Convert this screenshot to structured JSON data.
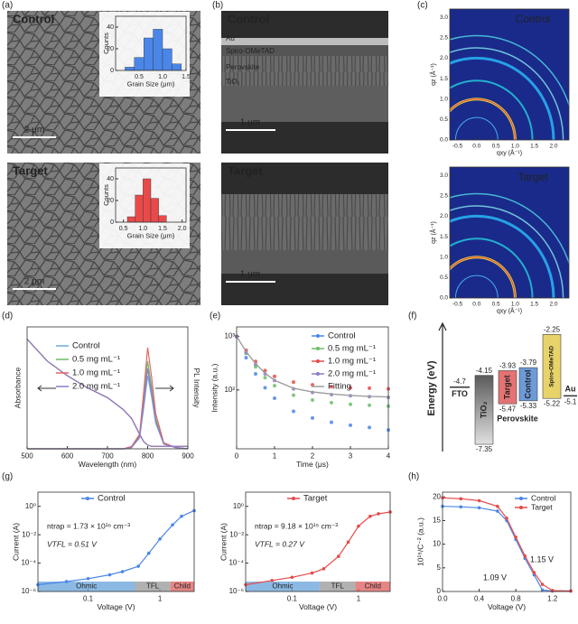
{
  "panel_labels": [
    "(a)",
    "(b)",
    "(c)",
    "(d)",
    "(e)",
    "(f)",
    "(g)",
    "(h)"
  ],
  "sem_images": [
    {
      "label": "Control",
      "scale_bar": "2 μm"
    },
    {
      "label": "Target",
      "scale_bar": "2 μm"
    }
  ],
  "cross_sections": [
    {
      "label": "Control",
      "layers": [
        "Au",
        "Spiro-OMeTAD",
        "Perovskite",
        "TiO₂"
      ],
      "scale_bar": "1 μm"
    },
    {
      "label": "Target",
      "scale_bar": "1 μm"
    }
  ],
  "giwaxs": [
    {
      "label": "Control",
      "xlabel": "qxy (Å⁻¹)",
      "ylabel": "qz (Å⁻¹)",
      "xlim": [
        -0.7,
        2.4
      ],
      "ylim": [
        0,
        3.2
      ],
      "xticks": [
        -0.5,
        {
          "value": 0,
          "label": "0.0"
        },
        0.5,
        {
          "value": 1,
          "label": "1.0"
        },
        1.5,
        {
          "value": 2,
          "label": "2.0"
        }
      ],
      "yticks": [
        {
          "value": 0,
          "label": "0.0"
        },
        0.5,
        {
          "value": 1,
          "label": "1.0"
        },
        1.5,
        {
          "value": 2,
          "label": "2.0"
        },
        2.5,
        {
          "value": 3,
          "label": "3.0"
        }
      ]
    },
    {
      "label": "Target",
      "xlabel": "qxy (Å⁻¹)",
      "ylabel": "qz (Å⁻¹)",
      "xlim": [
        -0.7,
        2.4
      ],
      "ylim": [
        0,
        3.2
      ],
      "xticks": [
        -0.5,
        {
          "value": 0,
          "label": "0.0"
        },
        0.5,
        {
          "value": 1,
          "label": "1.0"
        },
        1.5,
        {
          "value": 2,
          "label": "2.0"
        }
      ],
      "yticks": [
        {
          "value": 0,
          "label": "0.0"
        },
        0.5,
        {
          "value": 1,
          "label": "1.0"
        },
        1.5,
        {
          "value": 2,
          "label": "2.0"
        },
        2.5,
        {
          "value": 3,
          "label": "3.0"
        }
      ]
    }
  ],
  "chart_data": [
    {
      "type": "histogram",
      "xlabel": "Grain Size (μm)",
      "ylabel": "Counts",
      "color": "#4a86e8",
      "bins": [
        0.2,
        0.4,
        0.6,
        0.8,
        1.0,
        1.2,
        1.4
      ],
      "values": [
        3,
        12,
        30,
        38,
        20,
        6
      ],
      "xlim": [
        0,
        1.5
      ],
      "ylim": [
        0,
        50
      ],
      "xticks": [
        0.5,
        {
          "value": 1,
          "label": "1.0"
        },
        1.5
      ],
      "yticks": [
        0,
        20,
        40
      ]
    },
    {
      "type": "histogram",
      "xlabel": "Grain Size (μm)",
      "ylabel": "Counts",
      "color": "#e84a4a",
      "bins": [
        0.6,
        0.8,
        1.0,
        1.2,
        1.4,
        1.6
      ],
      "values": [
        5,
        25,
        40,
        22,
        6
      ],
      "xlim": [
        0.3,
        2.1
      ],
      "ylim": [
        0,
        50
      ],
      "xticks": [
        0.5,
        {
          "value": 1,
          "label": "1.0"
        },
        1.5,
        {
          "value": 2,
          "label": "2.0"
        }
      ],
      "yticks": [
        0,
        20,
        40
      ]
    },
    {
      "type": "line",
      "xlabel": "Wavelength (nm)",
      "ylabel": "Absorbance",
      "y2label": "PL Intensity",
      "x": [
        500,
        550,
        600,
        650,
        700,
        740,
        760,
        780,
        790,
        800,
        810,
        820,
        840,
        870,
        900
      ],
      "xlim": [
        500,
        900
      ],
      "ylim": [
        0,
        1
      ],
      "xticks": [
        500,
        600,
        700,
        800,
        900
      ],
      "series": [
        {
          "name": "Control",
          "color": "#6fa8dc",
          "values": [
            0.9,
            0.72,
            0.6,
            0.5,
            0.42,
            0.32,
            0.25,
            0.12,
            0.06,
            0.03,
            0.02,
            0.02,
            0.02,
            0.02,
            0.02
          ],
          "pl_values": [
            0,
            0,
            0,
            0,
            0,
            0,
            0.01,
            0.09,
            0.33,
            0.6,
            0.42,
            0.21,
            0.04,
            0.01,
            0
          ]
        },
        {
          "name": "0.5 mg mL⁻¹",
          "color": "#6abf69",
          "values": [
            0.9,
            0.72,
            0.6,
            0.5,
            0.42,
            0.32,
            0.25,
            0.12,
            0.06,
            0.03,
            0.02,
            0.02,
            0.02,
            0.02,
            0.02
          ],
          "pl_values": [
            0,
            0,
            0,
            0,
            0,
            0,
            0.01,
            0.11,
            0.4,
            0.72,
            0.5,
            0.25,
            0.04,
            0.01,
            0
          ]
        },
        {
          "name": "1.0 mg mL⁻¹",
          "color": "#e06666",
          "values": [
            0.9,
            0.72,
            0.6,
            0.5,
            0.42,
            0.32,
            0.25,
            0.12,
            0.06,
            0.03,
            0.02,
            0.02,
            0.02,
            0.02,
            0.02
          ],
          "pl_values": [
            0,
            0,
            0,
            0,
            0,
            0,
            0.02,
            0.12,
            0.46,
            0.83,
            0.58,
            0.29,
            0.05,
            0.01,
            0
          ]
        },
        {
          "name": "2.0 mg mL⁻¹",
          "color": "#8e7cc3",
          "values": [
            0.9,
            0.72,
            0.6,
            0.5,
            0.42,
            0.32,
            0.25,
            0.12,
            0.06,
            0.03,
            0.02,
            0.02,
            0.02,
            0.02,
            0.02
          ],
          "pl_values": [
            0,
            0,
            0,
            0,
            0,
            0,
            0.01,
            0.1,
            0.36,
            0.66,
            0.46,
            0.23,
            0.04,
            0.01,
            0
          ]
        }
      ]
    },
    {
      "type": "scatter",
      "xlabel": "Time (μs)",
      "ylabel": "Intensity (a.u.)",
      "ylog": true,
      "x": [
        0,
        0.25,
        0.5,
        0.75,
        1,
        1.5,
        2,
        2.5,
        3,
        3.5,
        4
      ],
      "xlim": [
        0,
        4
      ],
      "ylim": [
        8,
        1500
      ],
      "xticks": [
        0,
        1,
        2,
        3,
        4
      ],
      "yticks": [
        {
          "value": 1000,
          "label": "10³"
        },
        {
          "value": 100,
          "label": "10²"
        }
      ],
      "series": [
        {
          "name": "Control",
          "color": "#4a86e8",
          "values": [
            1000,
            400,
            200,
            110,
            70,
            40,
            30,
            25,
            22,
            20,
            18
          ]
        },
        {
          "name": "0.5 mg mL⁻¹",
          "color": "#6abf69",
          "values": [
            1000,
            480,
            270,
            170,
            120,
            80,
            65,
            58,
            54,
            52,
            50
          ]
        },
        {
          "name": "1.0 mg mL⁻¹",
          "color": "#e84a4a",
          "values": [
            1000,
            550,
            340,
            230,
            180,
            140,
            125,
            115,
            110,
            108,
            105
          ]
        },
        {
          "name": "2.0 mg mL⁻¹",
          "color": "#8e7cc3",
          "values": [
            1000,
            500,
            300,
            200,
            150,
            105,
            90,
            82,
            78,
            75,
            73
          ]
        },
        {
          "name": "Fitting",
          "color": "#9e9e9e",
          "values": [
            1000,
            520,
            310,
            205,
            152,
            108,
            92,
            84,
            79,
            76,
            74
          ]
        }
      ]
    },
    {
      "type": "line",
      "xlabel": "Voltage (V)",
      "ylabel": "Current (A)",
      "xlog": true,
      "ylog": true,
      "x": [
        0.02,
        0.05,
        0.1,
        0.2,
        0.3,
        0.5,
        0.7,
        1,
        1.5,
        2,
        3
      ],
      "xlim": [
        0.02,
        3
      ],
      "ylim": [
        1e-06,
        10
      ],
      "xticks": [
        0.1,
        1
      ],
      "yticks": [
        {
          "value": 1,
          "label": "10⁰"
        },
        {
          "value": 0.01,
          "label": "10⁻²"
        },
        {
          "value": 0.0001,
          "label": "10⁻⁴"
        },
        {
          "value": 1e-06,
          "label": "10⁻⁶"
        }
      ],
      "series": [
        {
          "name": "Control",
          "color": "#4a86e8",
          "values": [
            3e-06,
            5e-06,
            8e-06,
            1.5e-05,
            2.5e-05,
            6e-05,
            0.0005,
            0.005,
            0.05,
            0.2,
            0.5
          ]
        }
      ],
      "annotations": [
        "ntrap = 1.73 × 10¹⁶ cm⁻³",
        "VTFL = 0.51 V"
      ],
      "regions": [
        {
          "name": "Ohmic",
          "color": "#6fa8dc",
          "xrange": [
            0.02,
            0.45
          ]
        },
        {
          "name": "TFL",
          "color": "#9e9e9e",
          "xrange": [
            0.45,
            1.4
          ]
        },
        {
          "name": "Child",
          "color": "#e06666",
          "xrange": [
            1.4,
            3
          ]
        }
      ]
    },
    {
      "type": "line",
      "xlabel": "Voltage (V)",
      "ylabel": "Current (A)",
      "xlog": true,
      "ylog": true,
      "x": [
        0.02,
        0.05,
        0.1,
        0.2,
        0.3,
        0.5,
        0.7,
        1,
        1.5,
        2,
        3
      ],
      "xlim": [
        0.02,
        3
      ],
      "ylim": [
        1e-06,
        10
      ],
      "xticks": [
        0.1,
        1
      ],
      "yticks": [
        {
          "value": 1,
          "label": "10⁰"
        },
        {
          "value": 0.01,
          "label": "10⁻²"
        },
        {
          "value": 0.0001,
          "label": "10⁻⁴"
        },
        {
          "value": 1e-06,
          "label": "10⁻⁶"
        }
      ],
      "series": [
        {
          "name": "Target",
          "color": "#e84a4a",
          "values": [
            3e-06,
            6e-06,
            1e-05,
            2e-05,
            4e-05,
            0.0003,
            0.003,
            0.04,
            0.2,
            0.3,
            0.4
          ]
        }
      ],
      "annotations": [
        "ntrap = 9.18 × 10¹⁵ cm⁻³",
        "VTFL = 0.27 V"
      ],
      "regions": [
        {
          "name": "Ohmic",
          "color": "#6fa8dc",
          "xrange": [
            0.02,
            0.26
          ]
        },
        {
          "name": "TFL",
          "color": "#9e9e9e",
          "xrange": [
            0.26,
            0.9
          ]
        },
        {
          "name": "Child",
          "color": "#e06666",
          "xrange": [
            0.9,
            3
          ]
        }
      ]
    },
    {
      "type": "line",
      "xlabel": "Voltage (V)",
      "ylabel": "10¹⁵/C⁻² (a.u.)",
      "x": [
        0,
        0.2,
        0.4,
        0.6,
        0.7,
        0.8,
        0.9,
        1.0,
        1.09,
        1.2,
        1.4
      ],
      "xlim": [
        0,
        1.4
      ],
      "ylim": [
        0,
        21
      ],
      "xticks": [
        {
          "value": 0,
          "label": "0.0"
        },
        0.4,
        0.8,
        1.2
      ],
      "yticks": [
        0,
        5,
        10,
        15,
        20
      ],
      "series": [
        {
          "name": "Control",
          "color": "#4a86e8",
          "values": [
            18,
            17.9,
            17.7,
            17,
            15,
            11,
            7,
            3.5,
            0.3,
            0.1,
            0.1
          ]
        },
        {
          "name": "Target",
          "color": "#e84a4a",
          "values": [
            19.8,
            19.6,
            19.2,
            18,
            15.5,
            11.5,
            7.5,
            4,
            1.5,
            0.2,
            0.1
          ]
        }
      ],
      "annotations": [
        "1.09 V",
        "1.15 V"
      ]
    }
  ],
  "energy_diagram": {
    "ylabel": "Energy (eV)",
    "ylim": [
      -7.6,
      -1.9
    ],
    "group_label": "Perovskite",
    "levels": [
      {
        "name": "FTO",
        "color": "#333333",
        "values": [
          -4.7
        ]
      },
      {
        "name": "TiO₂",
        "color": "#8c8c8c",
        "values": [
          -4.15,
          -7.35
        ]
      },
      {
        "name": "Target",
        "color": "#e57373",
        "values": [
          -3.93,
          -5.47
        ]
      },
      {
        "name": "Control",
        "color": "#6d9ad8",
        "values": [
          -3.79,
          -5.33
        ]
      },
      {
        "name": "Spiro-OMeTAD",
        "color": "#e8d36a",
        "values": [
          -2.25,
          -5.22
        ]
      },
      {
        "name": "Au",
        "color": "#333333",
        "values": [
          -5.1
        ]
      }
    ]
  }
}
